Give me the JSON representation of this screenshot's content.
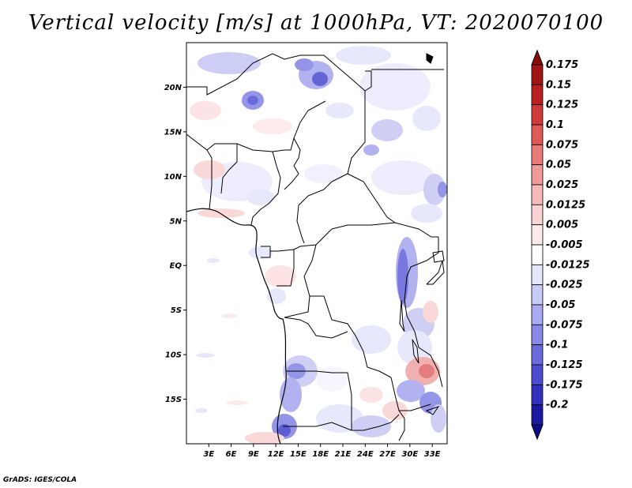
{
  "title": "Vertical velocity [m/s] at 1000hPa, VT: 2020070100",
  "credit": "GrADS: IGES/COLA",
  "map": {
    "lat_range": [
      -20,
      25
    ],
    "lon_range": [
      0,
      35
    ],
    "lat_ticks": [
      {
        "value": 20,
        "label": "20N"
      },
      {
        "value": 15,
        "label": "15N"
      },
      {
        "value": 10,
        "label": "10N"
      },
      {
        "value": 5,
        "label": "5N"
      },
      {
        "value": 0,
        "label": "EQ"
      },
      {
        "value": -5,
        "label": "5S"
      },
      {
        "value": -10,
        "label": "10S"
      },
      {
        "value": -15,
        "label": "15S"
      }
    ],
    "lon_ticks": [
      {
        "value": 3,
        "label": "3E"
      },
      {
        "value": 6,
        "label": "6E"
      },
      {
        "value": 9,
        "label": "9E"
      },
      {
        "value": 12,
        "label": "12E"
      },
      {
        "value": 15,
        "label": "15E"
      },
      {
        "value": 18,
        "label": "18E"
      },
      {
        "value": 21,
        "label": "21E"
      },
      {
        "value": 24,
        "label": "24E"
      },
      {
        "value": 27,
        "label": "27E"
      },
      {
        "value": 30,
        "label": "30E"
      },
      {
        "value": 33,
        "label": "33E"
      }
    ]
  },
  "colorbar": {
    "levels": [
      {
        "label": "0.175",
        "color": "#a01414"
      },
      {
        "label": "0.15",
        "color": "#b82020"
      },
      {
        "label": "0.125",
        "color": "#d03a3a"
      },
      {
        "label": "0.1",
        "color": "#e05858"
      },
      {
        "label": "0.075",
        "color": "#e87a7a"
      },
      {
        "label": "0.05",
        "color": "#f09a9a"
      },
      {
        "label": "0.025",
        "color": "#f6baba"
      },
      {
        "label": "0.0125",
        "color": "#fad4d4"
      },
      {
        "label": "0.005",
        "color": "#fde9e9"
      },
      {
        "label": "-0.005",
        "color": "#ffffff"
      },
      {
        "label": "-0.0125",
        "color": "#e6e6fc"
      },
      {
        "label": "-0.025",
        "color": "#cacaf6"
      },
      {
        "label": "-0.05",
        "color": "#aaaaf0"
      },
      {
        "label": "-0.075",
        "color": "#8a8ae6"
      },
      {
        "label": "-0.1",
        "color": "#6a6adc"
      },
      {
        "label": "-0.125",
        "color": "#4c4cd0"
      },
      {
        "label": "-0.175",
        "color": "#3030bc"
      },
      {
        "label": "-0.2",
        "color": "#1a1aa0"
      }
    ],
    "top_color": "#8c0a0a",
    "bottom_color": "#0c0c88"
  }
}
